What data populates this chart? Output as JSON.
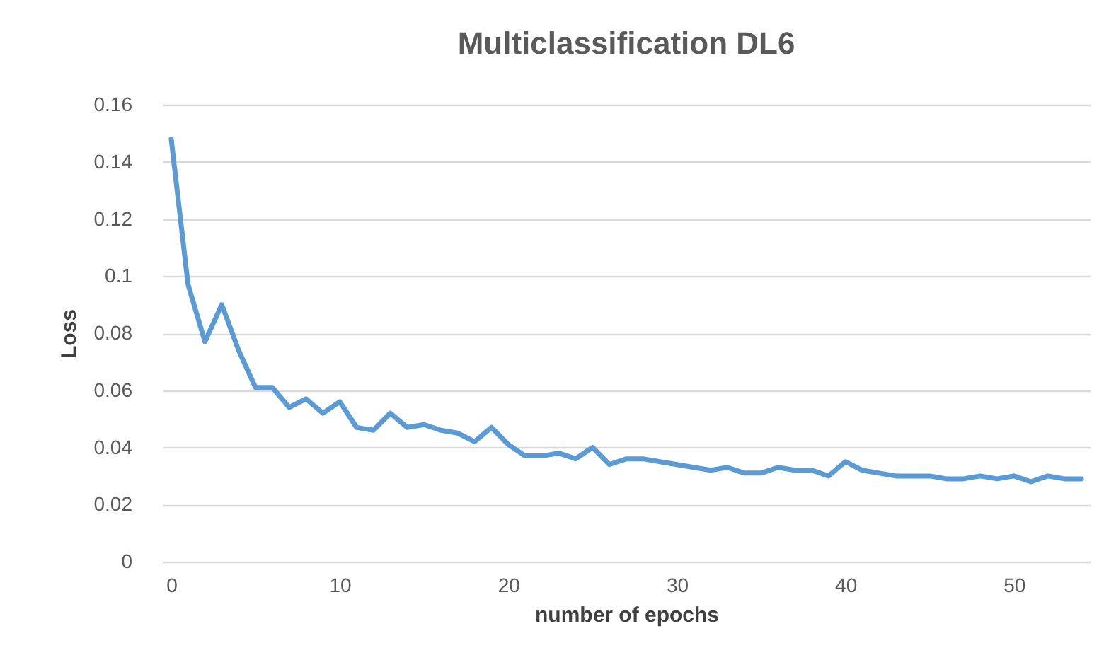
{
  "chart_data": {
    "type": "line",
    "title": "Multiclassification DL6",
    "xlabel": "number of epochs",
    "ylabel": "Loss",
    "x": [
      0,
      1,
      2,
      3,
      4,
      5,
      6,
      7,
      8,
      9,
      10,
      11,
      12,
      13,
      14,
      15,
      16,
      17,
      18,
      19,
      20,
      21,
      22,
      23,
      24,
      25,
      26,
      27,
      28,
      29,
      30,
      31,
      32,
      33,
      34,
      35,
      36,
      37,
      38,
      39,
      40,
      41,
      42,
      43,
      44,
      45,
      46,
      47,
      48,
      49,
      50,
      51,
      52,
      53,
      54
    ],
    "series": [
      {
        "color": "#5b9bd5",
        "values": [
          0.148,
          0.097,
          0.077,
          0.09,
          0.074,
          0.061,
          0.061,
          0.054,
          0.057,
          0.052,
          0.056,
          0.047,
          0.046,
          0.052,
          0.047,
          0.048,
          0.046,
          0.045,
          0.042,
          0.047,
          0.041,
          0.037,
          0.037,
          0.038,
          0.036,
          0.04,
          0.034,
          0.036,
          0.036,
          0.035,
          0.034,
          0.033,
          0.032,
          0.033,
          0.031,
          0.031,
          0.033,
          0.032,
          0.032,
          0.03,
          0.035,
          0.032,
          0.031,
          0.03,
          0.03,
          0.03,
          0.029,
          0.029,
          0.03,
          0.029,
          0.03,
          0.028,
          0.03,
          0.029,
          0.029
        ]
      }
    ],
    "xlim": [
      -0.5,
      54.5
    ],
    "xticks": [
      0,
      10,
      20,
      30,
      40,
      50
    ],
    "ylim": [
      0,
      0.16
    ],
    "yticks": [
      0,
      0.02,
      0.04,
      0.06,
      0.08,
      0.1,
      0.12,
      0.14,
      0.16
    ],
    "grid": "y",
    "legend": false
  }
}
